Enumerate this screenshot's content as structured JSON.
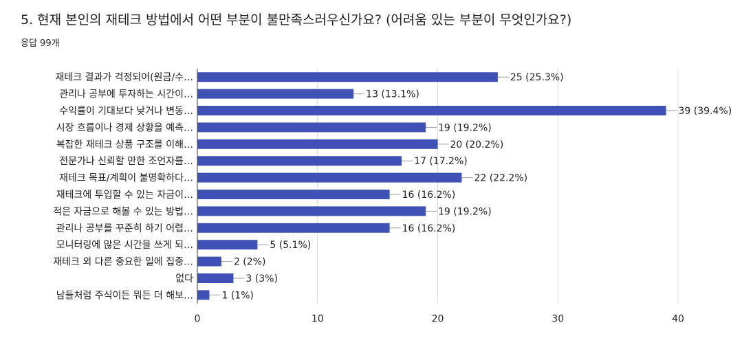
{
  "question": {
    "title": "5. 현재 본인의 재테크 방법에서 어떤 부분이 불만족스러우신가요? (어려움 있는 부분이 무엇인가요?)",
    "response_count": "응답 99개"
  },
  "chart_data": {
    "type": "bar",
    "orientation": "horizontal",
    "categories": [
      "재테크 결과가 걱정되어(원금/수…",
      "관리나 공부에 투자하는 시간이…",
      "수익률이 기대보다 낮거나 변동…",
      "시장 흐름이나 경제 상황을 예측…",
      "복잡한 재테크 상품 구조를 이해…",
      "전문가나 신뢰할 만한 조언자를…",
      "재테크 목표/계획이 불명확하다…",
      "재테크에 투입할 수 있는 자금이…",
      "적은 자금으로 해볼 수 있는 방법…",
      "관리나 공부를 꾸준히 하기 어렵…",
      "모니터링에 많은 시간을 쓰게 되…",
      "재테크 외 다른 중요한 일에 집중…",
      "없다",
      "남들처럼 주식이든 뭐든 더 해보…"
    ],
    "values": [
      25,
      13,
      39,
      19,
      20,
      17,
      22,
      16,
      19,
      16,
      5,
      2,
      3,
      1
    ],
    "value_labels": [
      "25 (25.3%)",
      "13 (13.1%)",
      "39 (39.4%)",
      "19 (19.2%)",
      "20 (20.2%)",
      "17 (17.2%)",
      "22 (22.2%)",
      "16 (16.2%)",
      "19 (19.2%)",
      "16 (16.2%)",
      "5 (5.1%)",
      "2 (2%)",
      "3 (3%)",
      "1 (1%)"
    ],
    "xlim": [
      0,
      40
    ],
    "xticks": [
      0,
      10,
      20,
      30,
      40
    ],
    "grid": true,
    "bar_color": "#3f51b5"
  }
}
